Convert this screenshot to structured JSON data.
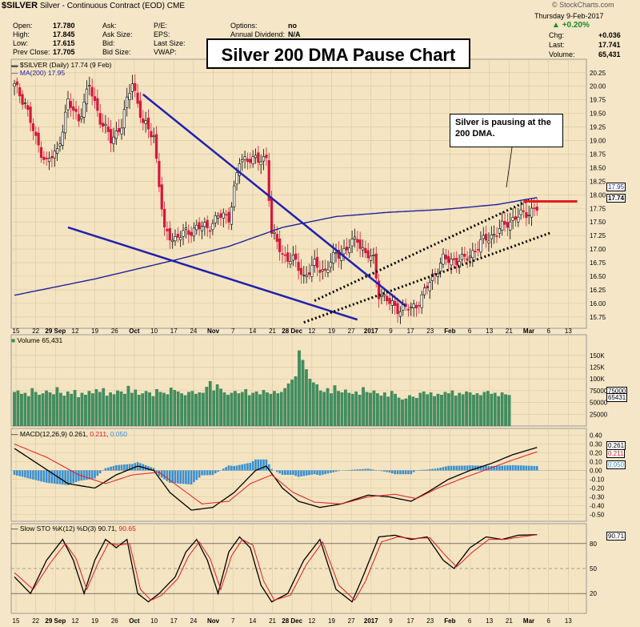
{
  "header": {
    "symbol": "$SILVER",
    "name": "Silver - Continuous Contract (EOD)",
    "exchange": "CME",
    "watermark": "© StockCharts.com",
    "date": "Thursday  9-Feb-2017",
    "change_pct": "+0.20%",
    "chg_label": "Chg:",
    "chg": "+0.036",
    "last_label": "Last:",
    "last": "17.741",
    "volume_label": "Volume:",
    "volume": "65,431",
    "fields": [
      {
        "label": "Open:",
        "value": "17.780"
      },
      {
        "label": "High:",
        "value": "17.845"
      },
      {
        "label": "Low:",
        "value": "17.615"
      },
      {
        "label": "Prev Close:",
        "value": "17.705"
      }
    ],
    "fields2": [
      "Ask:",
      "Ask Size:",
      "Bid:",
      "Bid Size:"
    ],
    "fields3": [
      "P/E:",
      "EPS:",
      "Last Size:",
      "VWAP:"
    ],
    "fields4": [
      {
        "label": "Options:",
        "value": "no"
      },
      {
        "label": "Annual Dividend:",
        "value": "N/A"
      }
    ]
  },
  "title_box": "Silver 200 DMA Pause Chart",
  "callout": "Silver is pausing at the 200 DMA.",
  "price_legend": "$SILVER (Daily) 17.74 (9 Feb)",
  "ma_legend": "MA(200) 17.95",
  "volume_legend": "Volume 65,431",
  "macd_legend_prefix": "MACD(12,26,9)",
  "macd_values": [
    "0.261",
    "0.211",
    "0.050"
  ],
  "sto_legend_prefix": "Slow STO %K(12) %D(3)",
  "sto_values": [
    "90.71",
    "90.65"
  ],
  "price_current_labels": [
    "17.95",
    "17.74"
  ],
  "volume_current_labels": [
    "75000",
    "65431"
  ],
  "macd_current_labels": [
    "0.261",
    "0.211",
    "0.050"
  ],
  "sto_current_label": "90.71",
  "colors": {
    "up": "#ffffff",
    "down": "#d8163a",
    "ma": "#1f1f9e",
    "trend": "#2020b0",
    "volume": "#3f8f5f",
    "macd_hist": "#3a8fd0",
    "red": "#e31b23"
  },
  "chart_data": [
    {
      "type": "candlestick",
      "title": "Silver 200 DMA Pause Chart",
      "series_name": "$SILVER (Daily)",
      "ylim": [
        15.6,
        20.35
      ],
      "yticks": [
        15.75,
        16.0,
        16.25,
        16.5,
        16.75,
        17.0,
        17.25,
        17.5,
        17.75,
        18.0,
        18.25,
        18.5,
        18.75,
        19.0,
        19.25,
        19.5,
        19.75,
        20.0,
        20.25
      ],
      "close_points": [
        [
          0,
          20.0
        ],
        [
          4,
          19.7
        ],
        [
          8,
          19.0
        ],
        [
          12,
          18.6
        ],
        [
          16,
          18.8
        ],
        [
          20,
          19.7
        ],
        [
          24,
          19.4
        ],
        [
          28,
          20.0
        ],
        [
          32,
          19.4
        ],
        [
          36,
          19.0
        ],
        [
          40,
          19.3
        ],
        [
          44,
          20.1
        ],
        [
          48,
          19.3
        ],
        [
          52,
          19.1
        ],
        [
          56,
          17.3
        ],
        [
          60,
          17.2
        ],
        [
          64,
          17.3
        ],
        [
          68,
          17.4
        ],
        [
          72,
          17.4
        ],
        [
          76,
          17.6
        ],
        [
          80,
          17.6
        ],
        [
          84,
          18.6
        ],
        [
          88,
          18.7
        ],
        [
          91,
          18.6
        ],
        [
          94,
          18.7
        ],
        [
          96,
          17.3
        ],
        [
          100,
          16.9
        ],
        [
          104,
          16.8
        ],
        [
          108,
          16.5
        ],
        [
          112,
          16.7
        ],
        [
          116,
          16.6
        ],
        [
          120,
          16.9
        ],
        [
          124,
          17.0
        ],
        [
          128,
          17.2
        ],
        [
          131,
          16.9
        ],
        [
          134,
          16.8
        ],
        [
          136,
          16.2
        ],
        [
          140,
          16.0
        ],
        [
          144,
          15.9
        ],
        [
          148,
          15.9
        ],
        [
          152,
          16.1
        ],
        [
          156,
          16.5
        ],
        [
          160,
          16.8
        ],
        [
          164,
          16.8
        ],
        [
          168,
          16.8
        ],
        [
          172,
          17.0
        ],
        [
          176,
          17.2
        ],
        [
          180,
          17.3
        ],
        [
          184,
          17.5
        ],
        [
          188,
          17.6
        ],
        [
          192,
          17.7
        ],
        [
          195,
          17.74
        ]
      ],
      "ma200_points": [
        [
          0,
          16.15
        ],
        [
          30,
          16.45
        ],
        [
          60,
          16.8
        ],
        [
          80,
          17.05
        ],
        [
          100,
          17.4
        ],
        [
          120,
          17.6
        ],
        [
          140,
          17.68
        ],
        [
          160,
          17.73
        ],
        [
          180,
          17.82
        ],
        [
          195,
          17.95
        ]
      ],
      "annotations": [
        {
          "type": "trendline",
          "style": "solid",
          "from": [
            48,
            19.85
          ],
          "to": [
            146,
            15.95
          ]
        },
        {
          "type": "trendline",
          "style": "solid",
          "from": [
            20,
            17.4
          ],
          "to": [
            128,
            15.7
          ]
        },
        {
          "type": "channel",
          "style": "dotted",
          "from": [
            112,
            16.05
          ],
          "to": [
            192,
            17.9
          ]
        },
        {
          "type": "channel",
          "style": "dotted",
          "from": [
            108,
            15.65
          ],
          "to": [
            200,
            17.3
          ]
        },
        {
          "type": "horizontal",
          "color": "red",
          "from": [
            190,
            17.88
          ],
          "to": [
            210,
            17.88
          ]
        }
      ],
      "x_labels": [
        "15",
        "22",
        "29 Sep",
        "12",
        "19",
        "26",
        "Oct",
        "10",
        "17",
        "24",
        "Nov",
        "7",
        "14",
        "21",
        "28 Dec",
        "12",
        "19",
        "27",
        "2017",
        "9",
        "17",
        "23",
        "Feb",
        "6",
        "13",
        "21",
        "Mar",
        "6",
        "13"
      ]
    },
    {
      "type": "bar",
      "title": "Volume 65,431",
      "ylim": [
        0,
        170000
      ],
      "yticks": [
        25000,
        50000,
        75000,
        100000,
        125000,
        150000
      ],
      "ytick_labels": [
        "25000",
        "50000",
        "75000",
        "100K",
        "125K",
        "150K"
      ],
      "values": [
        72000,
        75000,
        68000,
        70000,
        63000,
        80000,
        72000,
        66000,
        69000,
        75000,
        71000,
        67000,
        82000,
        70000,
        64000,
        73000,
        68000,
        76000,
        61000,
        70000,
        66000,
        74000,
        69000,
        78000,
        72000,
        80000,
        64000,
        71000,
        67000,
        75000,
        73000,
        68000,
        85000,
        70000,
        77000,
        66000,
        69000,
        74000,
        71000,
        63000,
        78000,
        72000,
        70000,
        67000,
        81000,
        76000,
        73000,
        69000,
        65000,
        72000,
        74000,
        68000,
        71000,
        70000,
        83000,
        95000,
        75000,
        88000,
        79000,
        71000,
        66000,
        70000,
        74000,
        69000,
        72000,
        78000,
        65000,
        70000,
        73000,
        67000,
        76000,
        71000,
        68000,
        74000,
        69000,
        72000,
        80000,
        90000,
        98000,
        105000,
        160000,
        140000,
        120000,
        100000,
        92000,
        88000,
        75000,
        72000,
        80000,
        69000,
        86000,
        74000,
        71000,
        77000,
        70000,
        68000,
        73000,
        66000,
        82000,
        72000,
        70000,
        75000,
        69000,
        64000,
        71000,
        62000,
        74000,
        68000,
        60000,
        56000,
        58000,
        65000,
        62000,
        59000,
        70000,
        73000,
        67000,
        71000,
        63000,
        68000,
        66000,
        72000,
        69000,
        75000,
        64000,
        70000,
        67000,
        73000,
        71000,
        66000,
        69000,
        65000,
        72000,
        74000,
        68000,
        70000,
        63000,
        71000,
        67000,
        65431
      ]
    },
    {
      "type": "line",
      "title": "MACD(12,26,9)",
      "ylim": [
        -0.55,
        0.45
      ],
      "yticks": [
        -0.5,
        -0.4,
        -0.3,
        -0.2,
        -0.1,
        0.0,
        0.1,
        0.2,
        0.3,
        0.4
      ],
      "series": [
        {
          "name": "MACD",
          "points": [
            [
              0,
              0.25
            ],
            [
              10,
              0.05
            ],
            [
              20,
              -0.15
            ],
            [
              30,
              -0.2
            ],
            [
              38,
              -0.05
            ],
            [
              46,
              0.05
            ],
            [
              52,
              0.0
            ],
            [
              58,
              -0.25
            ],
            [
              66,
              -0.45
            ],
            [
              74,
              -0.42
            ],
            [
              82,
              -0.25
            ],
            [
              90,
              0.0
            ],
            [
              94,
              0.05
            ],
            [
              100,
              -0.2
            ],
            [
              106,
              -0.35
            ],
            [
              114,
              -0.42
            ],
            [
              122,
              -0.38
            ],
            [
              132,
              -0.28
            ],
            [
              140,
              -0.3
            ],
            [
              148,
              -0.35
            ],
            [
              154,
              -0.25
            ],
            [
              162,
              -0.1
            ],
            [
              170,
              0.0
            ],
            [
              178,
              0.08
            ],
            [
              186,
              0.18
            ],
            [
              195,
              0.261
            ]
          ]
        },
        {
          "name": "Signal",
          "points": [
            [
              0,
              0.3
            ],
            [
              12,
              0.15
            ],
            [
              24,
              -0.05
            ],
            [
              34,
              -0.15
            ],
            [
              44,
              -0.05
            ],
            [
              54,
              -0.02
            ],
            [
              62,
              -0.2
            ],
            [
              70,
              -0.38
            ],
            [
              80,
              -0.35
            ],
            [
              88,
              -0.15
            ],
            [
              96,
              -0.05
            ],
            [
              104,
              -0.25
            ],
            [
              112,
              -0.36
            ],
            [
              122,
              -0.38
            ],
            [
              132,
              -0.3
            ],
            [
              142,
              -0.27
            ],
            [
              150,
              -0.32
            ],
            [
              158,
              -0.2
            ],
            [
              168,
              -0.08
            ],
            [
              178,
              0.03
            ],
            [
              186,
              0.12
            ],
            [
              195,
              0.211
            ]
          ]
        }
      ],
      "histogram_end": 0.05
    },
    {
      "type": "line",
      "title": "Slow STO %K(12) %D(3)",
      "ylim": [
        0,
        100
      ],
      "yticks": [
        20,
        50,
        80
      ],
      "series": [
        {
          "name": "%K",
          "points": [
            [
              0,
              40
            ],
            [
              6,
              20
            ],
            [
              12,
              60
            ],
            [
              18,
              85
            ],
            [
              22,
              60
            ],
            [
              26,
              20
            ],
            [
              30,
              60
            ],
            [
              34,
              85
            ],
            [
              38,
              75
            ],
            [
              42,
              85
            ],
            [
              46,
              20
            ],
            [
              50,
              10
            ],
            [
              54,
              20
            ],
            [
              60,
              40
            ],
            [
              64,
              70
            ],
            [
              68,
              85
            ],
            [
              72,
              60
            ],
            [
              76,
              20
            ],
            [
              80,
              70
            ],
            [
              84,
              88
            ],
            [
              88,
              75
            ],
            [
              92,
              30
            ],
            [
              96,
              10
            ],
            [
              102,
              20
            ],
            [
              108,
              60
            ],
            [
              114,
              85
            ],
            [
              120,
              25
            ],
            [
              126,
              10
            ],
            [
              130,
              40
            ],
            [
              136,
              88
            ],
            [
              142,
              90
            ],
            [
              148,
              85
            ],
            [
              154,
              88
            ],
            [
              160,
              60
            ],
            [
              164,
              50
            ],
            [
              170,
              75
            ],
            [
              176,
              88
            ],
            [
              182,
              85
            ],
            [
              188,
              90
            ],
            [
              195,
              90.71
            ]
          ]
        },
        {
          "name": "%D",
          "points": [
            [
              0,
              45
            ],
            [
              7,
              25
            ],
            [
              13,
              55
            ],
            [
              19,
              80
            ],
            [
              23,
              62
            ],
            [
              27,
              25
            ],
            [
              31,
              55
            ],
            [
              35,
              80
            ],
            [
              39,
              78
            ],
            [
              43,
              80
            ],
            [
              47,
              25
            ],
            [
              51,
              12
            ],
            [
              55,
              18
            ],
            [
              61,
              38
            ],
            [
              65,
              65
            ],
            [
              69,
              82
            ],
            [
              73,
              62
            ],
            [
              77,
              25
            ],
            [
              81,
              65
            ],
            [
              85,
              85
            ],
            [
              89,
              78
            ],
            [
              93,
              35
            ],
            [
              97,
              12
            ],
            [
              103,
              18
            ],
            [
              109,
              55
            ],
            [
              115,
              82
            ],
            [
              121,
              30
            ],
            [
              127,
              12
            ],
            [
              131,
              35
            ],
            [
              137,
              82
            ],
            [
              143,
              88
            ],
            [
              149,
              86
            ],
            [
              155,
              87
            ],
            [
              161,
              65
            ],
            [
              165,
              52
            ],
            [
              171,
              70
            ],
            [
              177,
              85
            ],
            [
              183,
              85
            ],
            [
              189,
              88
            ],
            [
              195,
              90.65
            ]
          ]
        }
      ]
    }
  ]
}
